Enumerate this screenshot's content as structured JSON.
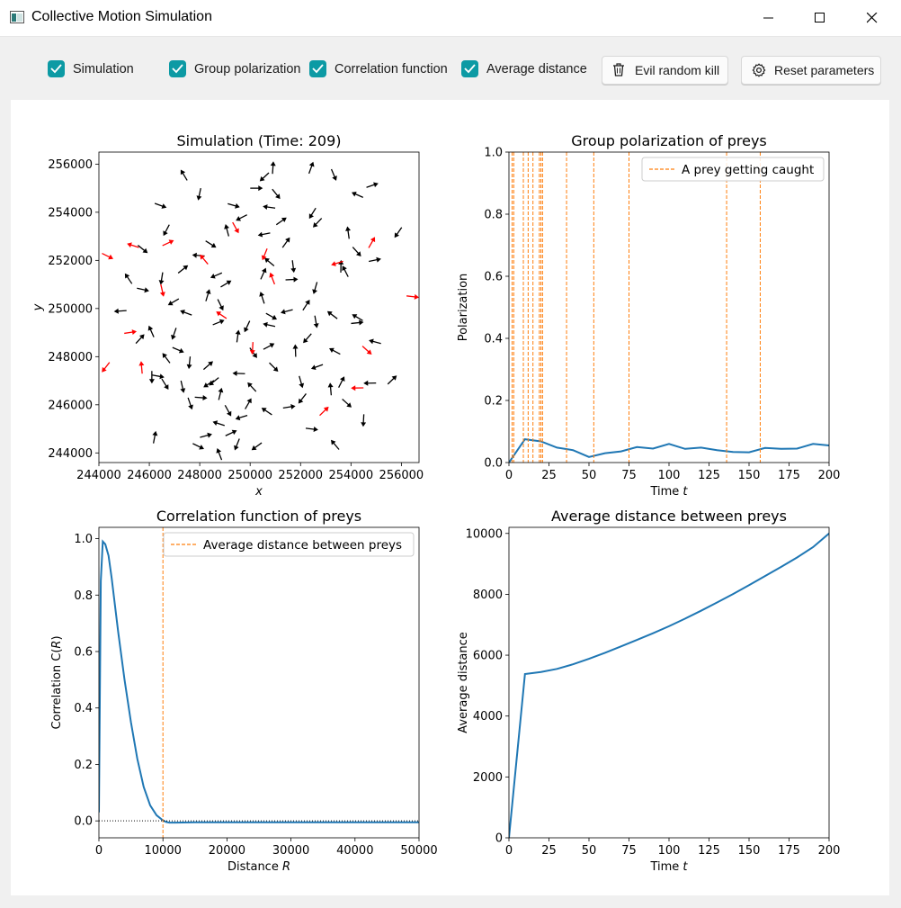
{
  "window": {
    "title": "Collective Motion Simulation",
    "controls": [
      "minimize",
      "maximize",
      "close"
    ]
  },
  "toolbar": {
    "checkboxes": [
      {
        "label": "Simulation",
        "checked": true
      },
      {
        "label": "Group polarization",
        "checked": true
      },
      {
        "label": "Correlation function",
        "checked": true
      },
      {
        "label": "Average distance",
        "checked": true
      }
    ],
    "buttons": [
      {
        "label": "Evil random kill",
        "icon": "trash-icon"
      },
      {
        "label": "Reset parameters",
        "icon": "gear-icon"
      }
    ],
    "accent_color": "#0c9aa4"
  },
  "chart_data": [
    {
      "type": "scatter",
      "title": "Simulation (Time: 209)",
      "xlabel": "x",
      "ylabel": "y",
      "xlim": [
        244000,
        256700
      ],
      "ylim": [
        243600,
        256500
      ],
      "xticks": [
        "244000",
        "246000",
        "248000",
        "250000",
        "252000",
        "254000",
        "256000"
      ],
      "yticks": [
        "244000",
        "246000",
        "248000",
        "250000",
        "252000",
        "254000",
        "256000"
      ],
      "series": [
        {
          "color": "#000000",
          "points": [
            [
              250200,
              255000
            ],
            [
              250600,
              255500
            ],
            [
              250900,
              255800
            ],
            [
              251000,
              254800
            ],
            [
              250800,
              254200
            ],
            [
              251200,
              253600
            ],
            [
              248000,
              254800
            ],
            [
              247400,
              255500
            ],
            [
              249300,
              254300
            ],
            [
              249700,
              253800
            ],
            [
              252400,
              255800
            ],
            [
              253300,
              255600
            ],
            [
              254300,
              254700
            ],
            [
              254800,
              255100
            ],
            [
              246700,
              253300
            ],
            [
              249100,
              253200
            ],
            [
              248400,
              252700
            ],
            [
              250600,
              253100
            ],
            [
              251400,
              252700
            ],
            [
              251700,
              251800
            ],
            [
              250800,
              251900
            ],
            [
              251600,
              251200
            ],
            [
              252700,
              253600
            ],
            [
              253600,
              251700
            ],
            [
              254200,
              252400
            ],
            [
              248000,
              252200
            ],
            [
              247300,
              251600
            ],
            [
              246500,
              251300
            ],
            [
              245200,
              251200
            ],
            [
              245700,
              250800
            ],
            [
              247000,
              250300
            ],
            [
              248300,
              250500
            ],
            [
              248800,
              250200
            ],
            [
              247500,
              249800
            ],
            [
              248700,
              249400
            ],
            [
              249900,
              249300
            ],
            [
              250500,
              250400
            ],
            [
              250800,
              249700
            ],
            [
              251500,
              249900
            ],
            [
              252200,
              250100
            ],
            [
              252600,
              249500
            ],
            [
              253300,
              249700
            ],
            [
              254200,
              249400
            ],
            [
              252300,
              248800
            ],
            [
              251800,
              248200
            ],
            [
              250900,
              247600
            ],
            [
              249600,
              247300
            ],
            [
              248300,
              247600
            ],
            [
              247600,
              247800
            ],
            [
              246700,
              247900
            ],
            [
              246300,
              247200
            ],
            [
              248400,
              246900
            ],
            [
              248800,
              246400
            ],
            [
              249100,
              245800
            ],
            [
              248800,
              245200
            ],
            [
              249200,
              244800
            ],
            [
              249500,
              244400
            ],
            [
              248800,
              243900
            ],
            [
              247900,
              244300
            ],
            [
              249700,
              245500
            ],
            [
              249900,
              246000
            ],
            [
              247300,
              246800
            ],
            [
              250700,
              245700
            ],
            [
              251500,
              245900
            ],
            [
              252100,
              246300
            ],
            [
              253200,
              246600
            ],
            [
              253800,
              246100
            ],
            [
              254800,
              246900
            ],
            [
              255600,
              247000
            ],
            [
              254500,
              245400
            ],
            [
              253400,
              244300
            ],
            [
              252400,
              245000
            ],
            [
              250300,
              244300
            ],
            [
              246200,
              244600
            ],
            [
              246600,
              246900
            ],
            [
              255000,
              248600
            ],
            [
              250700,
              248400
            ],
            [
              247000,
              249000
            ],
            [
              246100,
              249000
            ],
            [
              247100,
              248300
            ],
            [
              252700,
              247600
            ],
            [
              253600,
              246900
            ],
            [
              252000,
              247000
            ],
            [
              254300,
              249600
            ],
            [
              254900,
              252000
            ],
            [
              255900,
              253200
            ],
            [
              253900,
              253100
            ],
            [
              245700,
              252500
            ],
            [
              244900,
              249900
            ],
            [
              245600,
              248700
            ],
            [
              246100,
              247200
            ],
            [
              250100,
              246700
            ],
            [
              248000,
              246300
            ],
            [
              248600,
              247000
            ],
            [
              249500,
              248800
            ],
            [
              250100,
              248200
            ],
            [
              250800,
              249300
            ],
            [
              249000,
              251000
            ],
            [
              252600,
              250900
            ],
            [
              253800,
              251500
            ],
            [
              246400,
              254300
            ],
            [
              248700,
              251400
            ],
            [
              250500,
              251400
            ],
            [
              247600,
              246100
            ],
            [
              253400,
              248200
            ],
            [
              248200,
              244700
            ],
            [
              252500,
              254000
            ]
          ]
        },
        {
          "color": "#ff0000",
          "points": [
            [
              249400,
              253400
            ],
            [
              245400,
              252600
            ],
            [
              246700,
              252700
            ],
            [
              250600,
              252300
            ],
            [
              250900,
              251200
            ],
            [
              244300,
              252200
            ],
            [
              253500,
              251900
            ],
            [
              254800,
              252700
            ],
            [
              246500,
              250800
            ],
            [
              248900,
              249700
            ],
            [
              245200,
              249000
            ],
            [
              244300,
              247600
            ],
            [
              245700,
              247500
            ],
            [
              254600,
              248300
            ],
            [
              254300,
              246700
            ],
            [
              252900,
              245700
            ],
            [
              250100,
              248400
            ],
            [
              248200,
              252000
            ],
            [
              256400,
              250500
            ]
          ]
        }
      ]
    },
    {
      "type": "line",
      "title": "Group polarization of preys",
      "xlabel": "Time t",
      "ylabel": "Polarization",
      "xlim": [
        0,
        200
      ],
      "ylim": [
        0,
        1
      ],
      "xticks": [
        "0",
        "25",
        "50",
        "75",
        "100",
        "125",
        "150",
        "175",
        "200"
      ],
      "yticks": [
        "0.0",
        "0.2",
        "0.4",
        "0.6",
        "0.8",
        "1.0"
      ],
      "legend": [
        "A prey getting caught"
      ],
      "legend_position": "top-right",
      "series": [
        {
          "color": "#1f77b4",
          "x": [
            0,
            10,
            20,
            30,
            40,
            50,
            60,
            70,
            80,
            90,
            100,
            110,
            120,
            130,
            140,
            150,
            160,
            170,
            180,
            190,
            200
          ],
          "y": [
            0,
            0.075,
            0.068,
            0.048,
            0.04,
            0.018,
            0.03,
            0.036,
            0.05,
            0.045,
            0.06,
            0.044,
            0.048,
            0.04,
            0.034,
            0.033,
            0.047,
            0.044,
            0.045,
            0.06,
            0.055
          ]
        },
        {
          "name": "A prey getting caught",
          "color": "#ff7f0e",
          "vlines": [
            2,
            3,
            9,
            12,
            15,
            19,
            20,
            21,
            36,
            53,
            75,
            136,
            157
          ]
        }
      ]
    },
    {
      "type": "line",
      "title": "Correlation function of preys",
      "xlabel": "Distance R",
      "ylabel": "Correlation C(R)",
      "xlim": [
        0,
        50000
      ],
      "ylim": [
        -0.06,
        1.04
      ],
      "xticks": [
        "0",
        "10000",
        "20000",
        "30000",
        "40000",
        "50000"
      ],
      "yticks": [
        "0.0",
        "0.2",
        "0.4",
        "0.6",
        "0.8",
        "1.0"
      ],
      "legend": [
        "Average distance between preys"
      ],
      "legend_position": "top-right",
      "series": [
        {
          "color": "#1f77b4",
          "x": [
            0,
            300,
            600,
            1000,
            1500,
            2000,
            3000,
            4000,
            5000,
            6000,
            7000,
            8000,
            9000,
            10000,
            10500,
            11000,
            12000,
            15000,
            20000,
            30000,
            40000,
            50000
          ],
          "y": [
            0.03,
            0.85,
            0.99,
            0.98,
            0.94,
            0.86,
            0.67,
            0.5,
            0.35,
            0.22,
            0.12,
            0.055,
            0.02,
            0.002,
            -0.004,
            -0.006,
            -0.006,
            -0.005,
            -0.005,
            -0.005,
            -0.005,
            -0.005
          ]
        },
        {
          "name": "Average distance between preys",
          "color": "#ff7f0e",
          "vlines": [
            10000
          ]
        },
        {
          "color": "#000000",
          "hline": 0
        }
      ]
    },
    {
      "type": "line",
      "title": "Average distance between preys",
      "xlabel": "Time t",
      "ylabel": "Average distance",
      "xlim": [
        0,
        200
      ],
      "ylim": [
        0,
        10200
      ],
      "xticks": [
        "0",
        "25",
        "50",
        "75",
        "100",
        "125",
        "150",
        "175",
        "200"
      ],
      "yticks": [
        "0",
        "2000",
        "4000",
        "6000",
        "8000",
        "10000"
      ],
      "series": [
        {
          "color": "#1f77b4",
          "x": [
            0,
            10,
            20,
            30,
            40,
            50,
            60,
            70,
            80,
            90,
            100,
            110,
            120,
            130,
            140,
            150,
            160,
            170,
            180,
            190,
            200
          ],
          "y": [
            0,
            5380,
            5450,
            5550,
            5700,
            5880,
            6080,
            6290,
            6500,
            6720,
            6950,
            7200,
            7460,
            7730,
            8010,
            8300,
            8600,
            8900,
            9210,
            9550,
            10000
          ]
        }
      ]
    }
  ]
}
